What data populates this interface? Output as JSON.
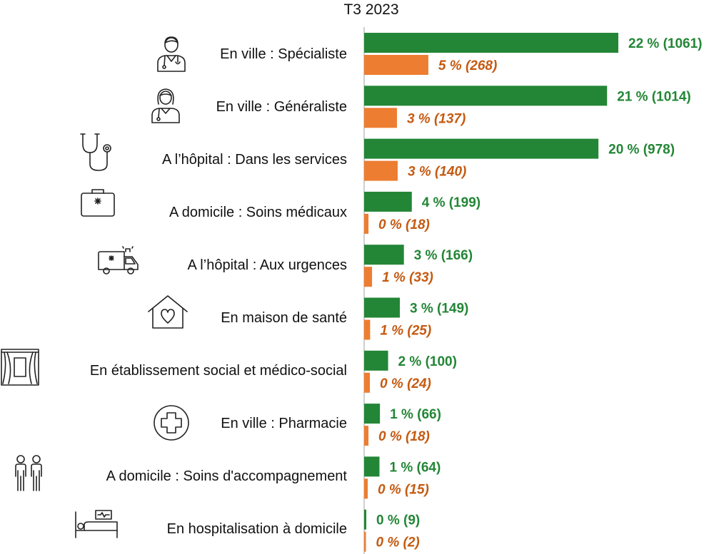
{
  "chart_data": {
    "type": "bar",
    "orientation": "horizontal",
    "title": "T3 2023",
    "xlabel": "",
    "ylabel": "",
    "grid": false,
    "xlim": [
      0,
      1061
    ],
    "categories": [
      "En ville : Spécialiste",
      "En ville : Généraliste",
      "A l’hôpital : Dans les services",
      "A domicile : Soins médicaux",
      "A l’hôpital : Aux urgences",
      "En maison de santé",
      "En établissement social et médico-social",
      "En ville : Pharmacie",
      "A domicile : Soins d'accompagnement",
      "En hospitalisation à domicile"
    ],
    "icons": [
      "male-doctor-icon",
      "female-doctor-icon",
      "stethoscope-icon",
      "medical-kit-icon",
      "ambulance-icon",
      "heart-house-icon",
      "window-curtains-icon",
      "medical-cross-icon",
      "two-people-icon",
      "hospital-bed-icon"
    ],
    "series": [
      {
        "color": "#238636",
        "values": [
          1061,
          1014,
          978,
          199,
          166,
          149,
          100,
          66,
          64,
          9
        ],
        "labels": [
          "22 % (1061)",
          "21 % (1014)",
          "20 % (978)",
          "4 % (199)",
          "3 % (166)",
          "3 % (149)",
          "2 % (100)",
          "1 % (66)",
          "1 % (64)",
          "0 % (9)"
        ]
      },
      {
        "color": "#ED7D31",
        "label_color": "#C55A11",
        "values": [
          268,
          137,
          140,
          18,
          33,
          25,
          24,
          18,
          15,
          2
        ],
        "labels": [
          "5 % (268)",
          "3 % (137)",
          "3 % (140)",
          "0 % (18)",
          "1 % (33)",
          "1 % (25)",
          "0 % (24)",
          "0 % (18)",
          "0 % (15)",
          "0 % (2)"
        ]
      }
    ]
  }
}
